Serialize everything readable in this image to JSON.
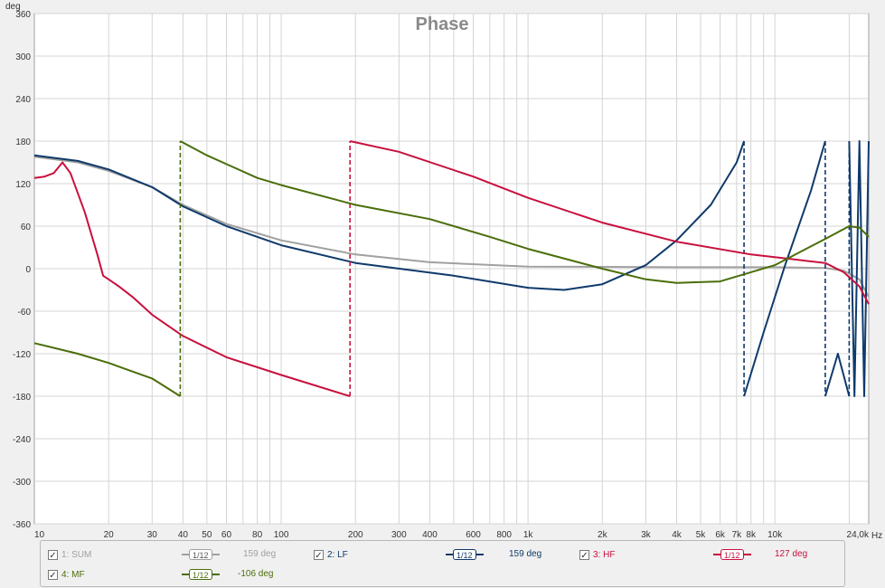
{
  "chart_data": {
    "type": "line",
    "title": "Phase",
    "ylabel": "deg",
    "x_unit": "Hz",
    "x_scale": "log",
    "xlim": [
      10,
      24000
    ],
    "ylim": [
      -360,
      360
    ],
    "y_ticks": [
      360,
      300,
      240,
      180,
      120,
      60,
      0,
      -60,
      -120,
      -180,
      -240,
      -300,
      -360
    ],
    "x_ticks": [
      10,
      20,
      30,
      40,
      50,
      60,
      80,
      100,
      200,
      300,
      400,
      600,
      800,
      1000,
      2000,
      3000,
      4000,
      5000,
      6000,
      7000,
      8000,
      10000,
      24000
    ],
    "x_tick_labels": [
      "10",
      "20",
      "30",
      "40",
      "50",
      "60",
      "80",
      "100",
      "200",
      "300",
      "400",
      "600",
      "800",
      "1k",
      "2k",
      "3k",
      "4k",
      "5k",
      "6k",
      "7k",
      "8k",
      "10k",
      "24,0k"
    ],
    "grid": true,
    "series": [
      {
        "name": "SUM",
        "color": "#a0a0a0",
        "points": [
          [
            10,
            158
          ],
          [
            15,
            150
          ],
          [
            20,
            138
          ],
          [
            30,
            115
          ],
          [
            40,
            90
          ],
          [
            60,
            63
          ],
          [
            100,
            40
          ],
          [
            200,
            20
          ],
          [
            400,
            9
          ],
          [
            1000,
            3
          ],
          [
            4000,
            2
          ],
          [
            10000,
            2
          ],
          [
            16000,
            1
          ],
          [
            19000,
            -3
          ],
          [
            22000,
            -15
          ],
          [
            24000,
            -40
          ]
        ]
      },
      {
        "name": "LF",
        "color": "#0f3a6b",
        "points": [
          [
            10,
            160
          ],
          [
            15,
            152
          ],
          [
            20,
            140
          ],
          [
            30,
            115
          ],
          [
            40,
            88
          ],
          [
            60,
            60
          ],
          [
            100,
            33
          ],
          [
            200,
            8
          ],
          [
            500,
            -10
          ],
          [
            1000,
            -27
          ],
          [
            1400,
            -30
          ],
          [
            2000,
            -22
          ],
          [
            3000,
            5
          ],
          [
            4000,
            40
          ],
          [
            5500,
            90
          ],
          [
            7000,
            150
          ],
          [
            7500,
            180
          ],
          [
            7500,
            -180
          ],
          [
            9000,
            -90
          ],
          [
            11000,
            5
          ],
          [
            14000,
            110
          ],
          [
            16000,
            180
          ],
          [
            16000,
            -180
          ],
          [
            18000,
            -120
          ],
          [
            20000,
            -180
          ],
          [
            20000,
            180
          ],
          [
            21000,
            -180
          ],
          [
            22000,
            180
          ],
          [
            23000,
            -180
          ],
          [
            24000,
            180
          ]
        ]
      },
      {
        "name": "HF",
        "color": "#c8103e",
        "points": [
          [
            10,
            128
          ],
          [
            11,
            130
          ],
          [
            12,
            135
          ],
          [
            13,
            150
          ],
          [
            14,
            135
          ],
          [
            16,
            80
          ],
          [
            18,
            20
          ],
          [
            19,
            -10
          ],
          [
            20,
            -15
          ],
          [
            22,
            -25
          ],
          [
            25,
            -40
          ],
          [
            30,
            -65
          ],
          [
            40,
            -95
          ],
          [
            60,
            -125
          ],
          [
            100,
            -150
          ],
          [
            190,
            -180
          ],
          [
            190,
            180
          ],
          [
            300,
            165
          ],
          [
            600,
            130
          ],
          [
            1000,
            100
          ],
          [
            2000,
            65
          ],
          [
            4000,
            38
          ],
          [
            8000,
            20
          ],
          [
            12000,
            13
          ],
          [
            16000,
            8
          ],
          [
            19000,
            -5
          ],
          [
            22000,
            -25
          ],
          [
            24000,
            -50
          ]
        ]
      },
      {
        "name": "MF",
        "color": "#4a6e0a",
        "points": [
          [
            10,
            -105
          ],
          [
            15,
            -120
          ],
          [
            20,
            -133
          ],
          [
            30,
            -155
          ],
          [
            39,
            -180
          ],
          [
            39,
            180
          ],
          [
            50,
            160
          ],
          [
            80,
            128
          ],
          [
            100,
            118
          ],
          [
            200,
            90
          ],
          [
            400,
            70
          ],
          [
            700,
            45
          ],
          [
            1000,
            28
          ],
          [
            2000,
            0
          ],
          [
            3000,
            -15
          ],
          [
            4000,
            -20
          ],
          [
            6000,
            -18
          ],
          [
            10000,
            5
          ],
          [
            16000,
            42
          ],
          [
            20000,
            60
          ],
          [
            22000,
            58
          ],
          [
            24000,
            45
          ]
        ]
      }
    ]
  },
  "legend": {
    "items": [
      {
        "label": "1: SUM",
        "checkbox": "✓",
        "smoothing": "1/12",
        "value": "159 deg",
        "color": "#a0a0a0"
      },
      {
        "label": "2: LF",
        "checkbox": "✓",
        "smoothing": "1/12",
        "value": "159 deg",
        "color": "#0f3a6b"
      },
      {
        "label": "3: HF",
        "checkbox": "✓",
        "smoothing": "1/12",
        "value": "127 deg",
        "color": "#c8103e"
      },
      {
        "label": "4: MF",
        "checkbox": "✓",
        "smoothing": "1/12",
        "value": "-106 deg",
        "color": "#4a6e0a"
      }
    ]
  }
}
